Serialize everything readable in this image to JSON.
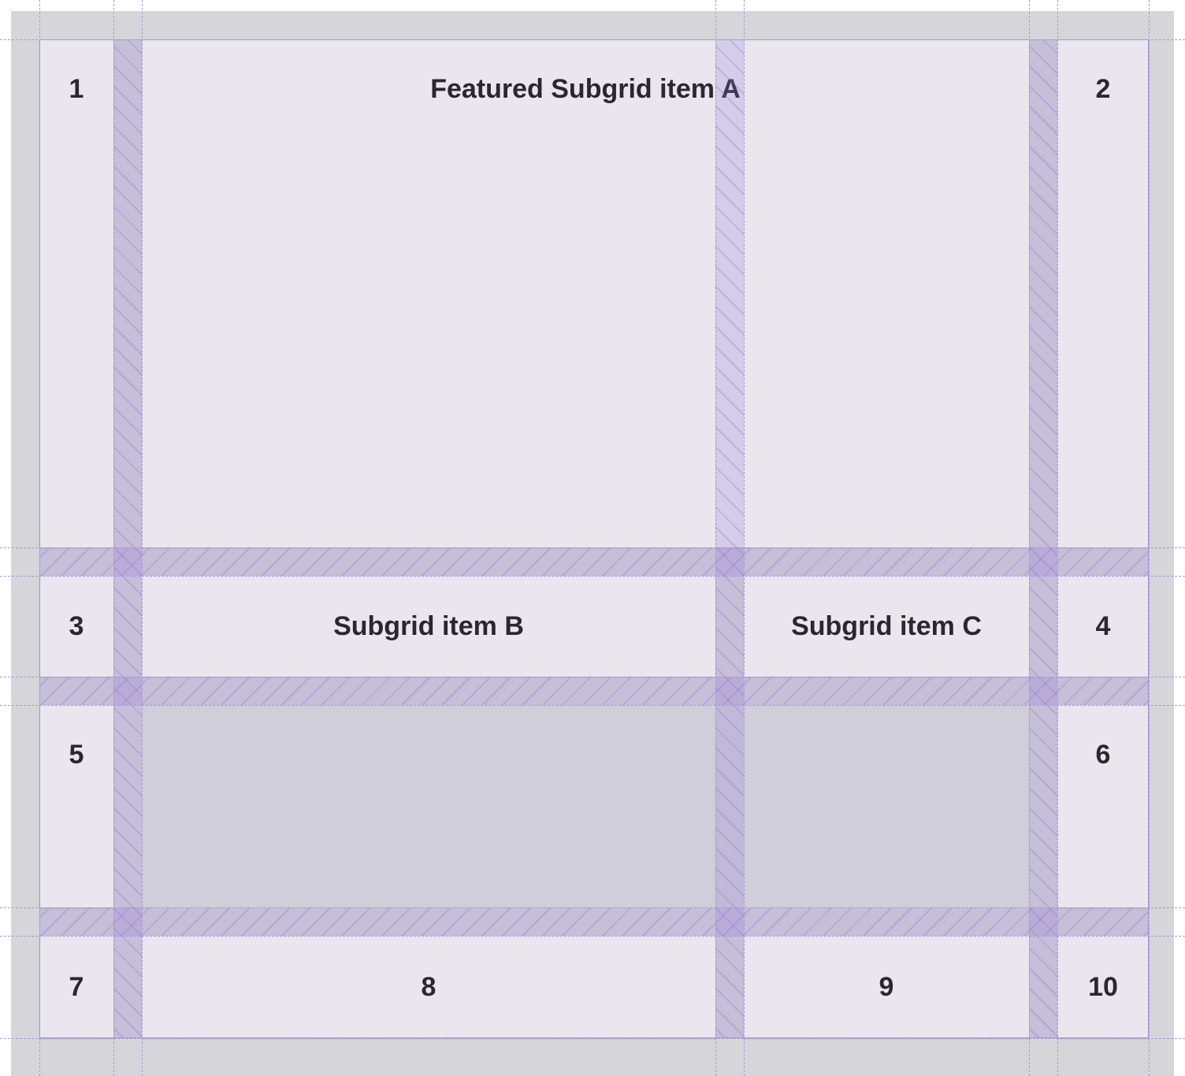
{
  "grid": {
    "featured_item": "Featured Subgrid item A",
    "item_b": "Subgrid item B",
    "item_c": "Subgrid item C",
    "numbers": [
      "1",
      "2",
      "3",
      "4",
      "5",
      "6",
      "7",
      "8",
      "9",
      "10"
    ]
  },
  "colors": {
    "cell": "#e9e6ee",
    "background": "#d6d6da",
    "overlay": "#a995d8",
    "empty": "#d0ced9"
  }
}
